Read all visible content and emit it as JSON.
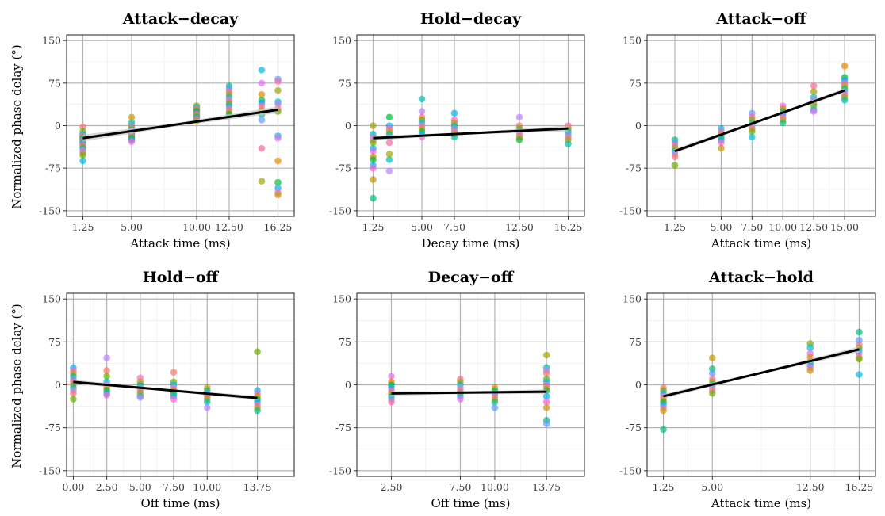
{
  "figure": {
    "ylabel": "Normalized phase delay (°)",
    "ylim": [
      -160,
      160
    ],
    "yticks": [
      -150,
      -75,
      0,
      75,
      150
    ],
    "point_colors": [
      "#F8766D",
      "#E58700",
      "#C99800",
      "#A3A500",
      "#6BB100",
      "#00BA38",
      "#00BF7D",
      "#00C0AF",
      "#00BCD8",
      "#00B0F6",
      "#619CFF",
      "#B983FF",
      "#E76BF3",
      "#FD61D1",
      "#FF67A4"
    ],
    "fit_color": "#000000",
    "ci_color": "#c8c8c8"
  },
  "chart_data": [
    {
      "type": "scatter",
      "title": "Attack−decay",
      "xlabel": "Attack time (ms)",
      "xlim": [
        0,
        17.5
      ],
      "xticks": [
        1.25,
        5,
        10,
        12.5,
        16.25
      ],
      "xtick_labels": [
        "1.25",
        "5.00",
        "10.00",
        "12.50",
        "16.25"
      ],
      "ylim": [
        -160,
        160
      ],
      "series": [
        {
          "x": 1.25,
          "y": [
            -2,
            -10,
            -15,
            -18,
            -20,
            -22,
            -24,
            -26,
            -28,
            -30,
            -32,
            -35,
            -38,
            -40,
            -44,
            -48,
            -52,
            -62
          ]
        },
        {
          "x": 5,
          "y": [
            15,
            5,
            0,
            -3,
            -5,
            -8,
            -10,
            -12,
            -14,
            -16,
            -18,
            -20,
            -22,
            -25,
            -28
          ]
        },
        {
          "x": 10,
          "y": [
            35,
            32,
            30,
            28,
            25,
            22,
            20,
            18,
            15,
            12,
            10,
            8
          ]
        },
        {
          "x": 12.5,
          "y": [
            70,
            65,
            60,
            55,
            50,
            46,
            42,
            38,
            35,
            30,
            25,
            20
          ]
        },
        {
          "x": 15,
          "y": [
            98,
            75,
            55,
            45,
            40,
            35,
            28,
            20,
            10,
            -40,
            -98
          ]
        },
        {
          "x": 16.25,
          "y": [
            82,
            78,
            62,
            42,
            38,
            30,
            25,
            -18,
            -22,
            -62,
            -100,
            -110,
            -118,
            -122
          ]
        }
      ],
      "fit": {
        "x": [
          1.25,
          16.25
        ],
        "y": [
          -22,
          28
        ]
      },
      "ci_halfwidth": [
        6,
        3,
        6
      ]
    },
    {
      "type": "scatter",
      "title": "Hold−decay",
      "xlabel": "Decay time (ms)",
      "xlim": [
        0,
        17.5
      ],
      "xticks": [
        1.25,
        5,
        7.5,
        12.5,
        16.25
      ],
      "xtick_labels": [
        "1.25",
        "5.00",
        "7.50",
        "12.50",
        "16.25"
      ],
      "ylim": [
        -160,
        160
      ],
      "series": [
        {
          "x": 1.25,
          "y": [
            0,
            -15,
            -20,
            -25,
            -30,
            -40,
            -45,
            -55,
            -60,
            -70,
            -75,
            -95,
            -128
          ]
        },
        {
          "x": 2.5,
          "y": [
            15,
            0,
            -5,
            -10,
            -15,
            -20,
            -30,
            -50,
            -60,
            -80
          ]
        },
        {
          "x": 5,
          "y": [
            47,
            25,
            15,
            10,
            5,
            0,
            -5,
            -10,
            -15,
            -20
          ]
        },
        {
          "x": 7.5,
          "y": [
            22,
            10,
            5,
            0,
            -5,
            -10,
            -15,
            -20
          ]
        },
        {
          "x": 12.5,
          "y": [
            15,
            0,
            -5,
            -10,
            -15,
            -20,
            -25
          ]
        },
        {
          "x": 16.25,
          "y": [
            0,
            -5,
            -10,
            -15,
            -20,
            -25,
            -32
          ]
        }
      ],
      "fit": {
        "x": [
          1.25,
          16.25
        ],
        "y": [
          -22,
          -5
        ]
      },
      "ci_halfwidth": [
        4,
        2,
        5
      ]
    },
    {
      "type": "scatter",
      "title": "Attack−off",
      "xlabel": "Attack time (ms)",
      "xlim": [
        -1,
        17.5
      ],
      "xticks": [
        1.25,
        5,
        7.5,
        10,
        12.5,
        15
      ],
      "xtick_labels": [
        "1.25",
        "5.00",
        "7.50",
        "10.00",
        "12.50",
        "15.00"
      ],
      "ylim": [
        -160,
        160
      ],
      "series": [
        {
          "x": 1.25,
          "y": [
            -25,
            -30,
            -35,
            -40,
            -45,
            -50,
            -55,
            -70
          ]
        },
        {
          "x": 5,
          "y": [
            -5,
            -10,
            -15,
            -20,
            -25,
            -30,
            -40
          ]
        },
        {
          "x": 7.5,
          "y": [
            22,
            15,
            10,
            5,
            0,
            -5,
            -10,
            -20
          ]
        },
        {
          "x": 10,
          "y": [
            35,
            30,
            25,
            20,
            15,
            10,
            5
          ]
        },
        {
          "x": 12.5,
          "y": [
            70,
            60,
            50,
            45,
            40,
            35,
            28,
            25
          ]
        },
        {
          "x": 15,
          "y": [
            105,
            85,
            80,
            75,
            70,
            65,
            60,
            55,
            50,
            45
          ]
        }
      ],
      "fit": {
        "x": [
          1.25,
          15
        ],
        "y": [
          -45,
          62
        ]
      },
      "ci_halfwidth": [
        4,
        2,
        4
      ]
    },
    {
      "type": "scatter",
      "title": "Hold−off",
      "xlabel": "Off time (ms)",
      "xlim": [
        -0.5,
        16.5
      ],
      "xticks": [
        0,
        2.5,
        5,
        7.5,
        10,
        13.75
      ],
      "xtick_labels": [
        "0.00",
        "2.50",
        "5.00",
        "7.50",
        "10.00",
        "13.75"
      ],
      "ylim": [
        -160,
        160
      ],
      "series": [
        {
          "x": 0,
          "y": [
            30,
            25,
            20,
            15,
            10,
            5,
            0,
            -5,
            -10,
            -15,
            -25
          ]
        },
        {
          "x": 2.5,
          "y": [
            47,
            25,
            15,
            5,
            0,
            -5,
            -10,
            -15,
            -18
          ]
        },
        {
          "x": 5,
          "y": [
            12,
            5,
            0,
            -5,
            -10,
            -15,
            -20,
            -22
          ]
        },
        {
          "x": 7.5,
          "y": [
            22,
            5,
            0,
            -5,
            -10,
            -15,
            -20,
            -25
          ]
        },
        {
          "x": 10,
          "y": [
            -5,
            -10,
            -15,
            -20,
            -25,
            -30,
            -40
          ]
        },
        {
          "x": 13.75,
          "y": [
            58,
            -10,
            -15,
            -20,
            -25,
            -30,
            -35,
            -40,
            -45
          ]
        }
      ],
      "fit": {
        "x": [
          0,
          13.75
        ],
        "y": [
          5,
          -23
        ]
      },
      "ci_halfwidth": [
        4,
        2,
        4
      ]
    },
    {
      "type": "scatter",
      "title": "Decay−off",
      "xlabel": "Off time (ms)",
      "xlim": [
        0,
        16.5
      ],
      "xticks": [
        2.5,
        7.5,
        10,
        13.75
      ],
      "xtick_labels": [
        "2.50",
        "7.50",
        "10.00",
        "13.75"
      ],
      "ylim": [
        -160,
        160
      ],
      "series": [
        {
          "x": 2.5,
          "y": [
            15,
            5,
            0,
            -5,
            -10,
            -15,
            -20,
            -25,
            -30
          ]
        },
        {
          "x": 7.5,
          "y": [
            10,
            5,
            0,
            -5,
            -10,
            -15,
            -20,
            -25
          ]
        },
        {
          "x": 10,
          "y": [
            -5,
            -10,
            -15,
            -20,
            -25,
            -30,
            -40
          ]
        },
        {
          "x": 13.75,
          "y": [
            52,
            30,
            25,
            20,
            10,
            5,
            0,
            -5,
            -10,
            -20,
            -30,
            -40,
            -62,
            -68
          ]
        }
      ],
      "fit": {
        "x": [
          2.5,
          13.75
        ],
        "y": [
          -15,
          -12
        ]
      },
      "ci_halfwidth": [
        4,
        2,
        4
      ]
    },
    {
      "type": "scatter",
      "title": "Attack−hold",
      "xlabel": "Attack time (ms)",
      "xlim": [
        0,
        17.5
      ],
      "xticks": [
        1.25,
        5,
        12.5,
        16.25
      ],
      "xtick_labels": [
        "1.25",
        "5.00",
        "12.50",
        "16.25"
      ],
      "ylim": [
        -160,
        160
      ],
      "series": [
        {
          "x": 1.25,
          "y": [
            -5,
            -10,
            -15,
            -20,
            -25,
            -30,
            -35,
            -40,
            -45,
            -78
          ]
        },
        {
          "x": 5,
          "y": [
            47,
            28,
            20,
            10,
            5,
            0,
            -5,
            -10,
            -15
          ]
        },
        {
          "x": 12.5,
          "y": [
            72,
            65,
            55,
            48,
            40,
            35,
            30,
            25
          ]
        },
        {
          "x": 16.25,
          "y": [
            92,
            78,
            70,
            65,
            60,
            55,
            48,
            45,
            18
          ]
        }
      ],
      "fit": {
        "x": [
          1.25,
          16.25
        ],
        "y": [
          -20,
          62
        ]
      },
      "ci_halfwidth": [
        4,
        2,
        5
      ]
    }
  ]
}
